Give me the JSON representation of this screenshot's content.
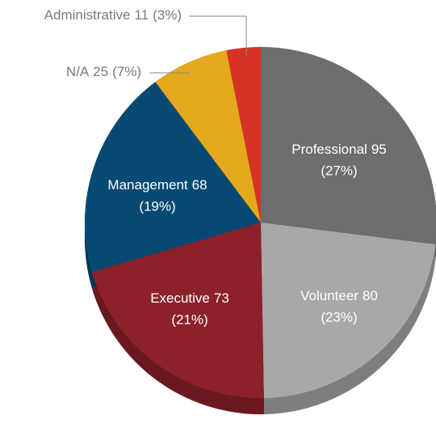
{
  "chart_data": {
    "type": "pie",
    "categories": [
      "Professional",
      "Volunteer",
      "Executive",
      "Management",
      "N/A",
      "Administrative"
    ],
    "values": [
      95,
      80,
      73,
      68,
      25,
      11
    ],
    "percent_labels": [
      "(27%)",
      "(23%)",
      "(21%)",
      "(19%)",
      "(7%)",
      "(3%)"
    ],
    "colors": [
      "#6d6e70",
      "#a7a8aa",
      "#8c2129",
      "#064a74",
      "#e3a81c",
      "#d63327"
    ]
  }
}
